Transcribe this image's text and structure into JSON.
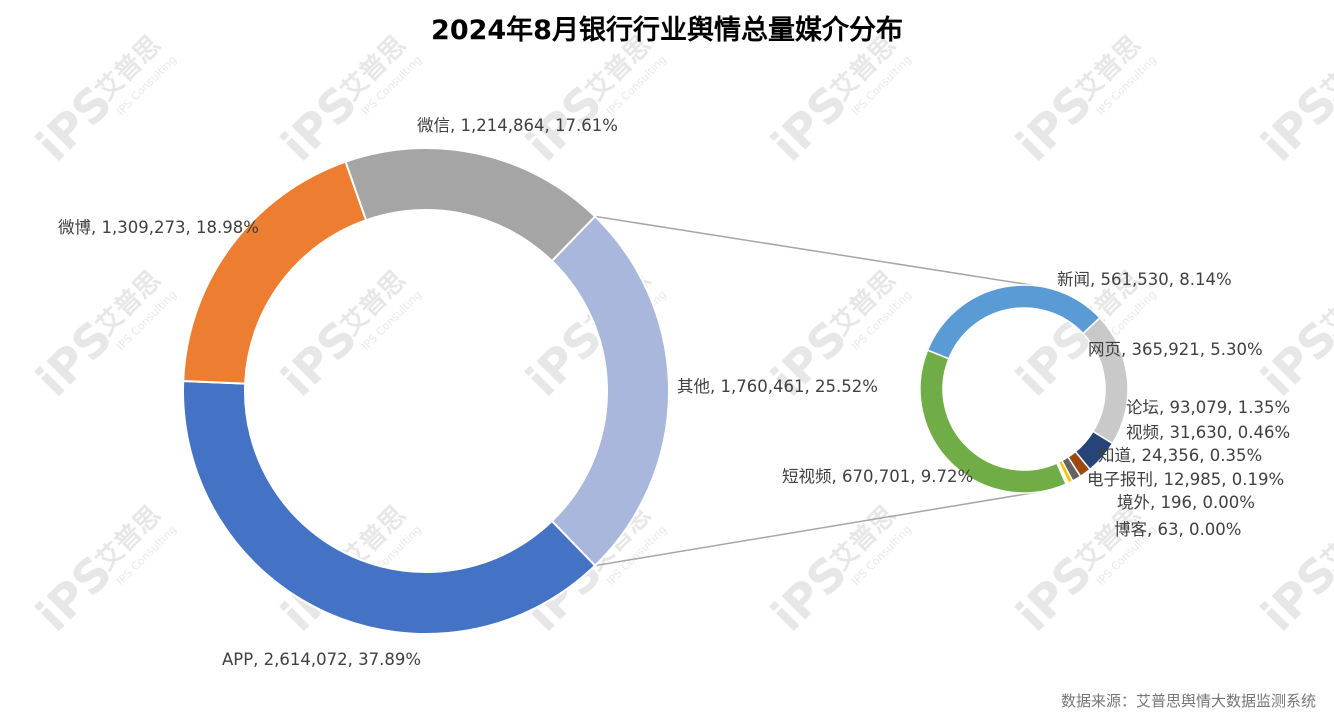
{
  "chart_data": {
    "type": "pie-of-pie donut",
    "title": "2024年8月银行行业舆情总量媒介分布",
    "main": [
      {
        "name": "APP",
        "value": 2614072,
        "percent": "37.89%",
        "label": "APP, 2,614,072, 37.89%",
        "color": "#4472C4"
      },
      {
        "name": "微博",
        "value": 1309273,
        "percent": "18.98%",
        "label": "微博, 1,309,273, 18.98%",
        "color": "#ED7D31"
      },
      {
        "name": "微信",
        "value": 1214864,
        "percent": "17.61%",
        "label": "微信, 1,214,864, 17.61%",
        "color": "#A5A5A5"
      },
      {
        "name": "其他",
        "value": 1760461,
        "percent": "25.52%",
        "label": "其他, 1,760,461, 25.52%",
        "color": "#A9B7DC"
      }
    ],
    "secondary": [
      {
        "name": "新闻",
        "value": 561530,
        "percent": "8.14%",
        "label": "新闻, 561,530, 8.14%",
        "color": "#5B9BD5"
      },
      {
        "name": "网页",
        "value": 365921,
        "percent": "5.30%",
        "label": "网页, 365,921, 5.30%",
        "color": "#C9C9C9"
      },
      {
        "name": "论坛",
        "value": 93079,
        "percent": "1.35%",
        "label": "论坛, 93,079, 1.35%",
        "color": "#264478"
      },
      {
        "name": "视频",
        "value": 31630,
        "percent": "0.46%",
        "label": "视频, 31,630, 0.46%",
        "color": "#9E480E"
      },
      {
        "name": "知道",
        "value": 24356,
        "percent": "0.35%",
        "label": "知道, 24,356, 0.35%",
        "color": "#636363"
      },
      {
        "name": "电子报刊",
        "value": 12985,
        "percent": "0.19%",
        "label": "电子报刊, 12,985, 0.19%",
        "color": "#FFC000"
      },
      {
        "name": "境外",
        "value": 196,
        "percent": "0.00%",
        "label": "境外, 196, 0.00%",
        "color": "#4472C4"
      },
      {
        "name": "博客",
        "value": 63,
        "percent": "0.00%",
        "label": "博客, 63, 0.00%",
        "color": "#ED7D31"
      },
      {
        "name": "短视频",
        "value": 670701,
        "percent": "9.72%",
        "label": "短视频, 670,701, 9.72%",
        "color": "#70AD47"
      }
    ]
  },
  "watermark": {
    "brand": "艾普思",
    "logo": "iPS",
    "sub": "IPS Consulting"
  },
  "source": "数据来源：艾普思舆情大数据监测系统"
}
